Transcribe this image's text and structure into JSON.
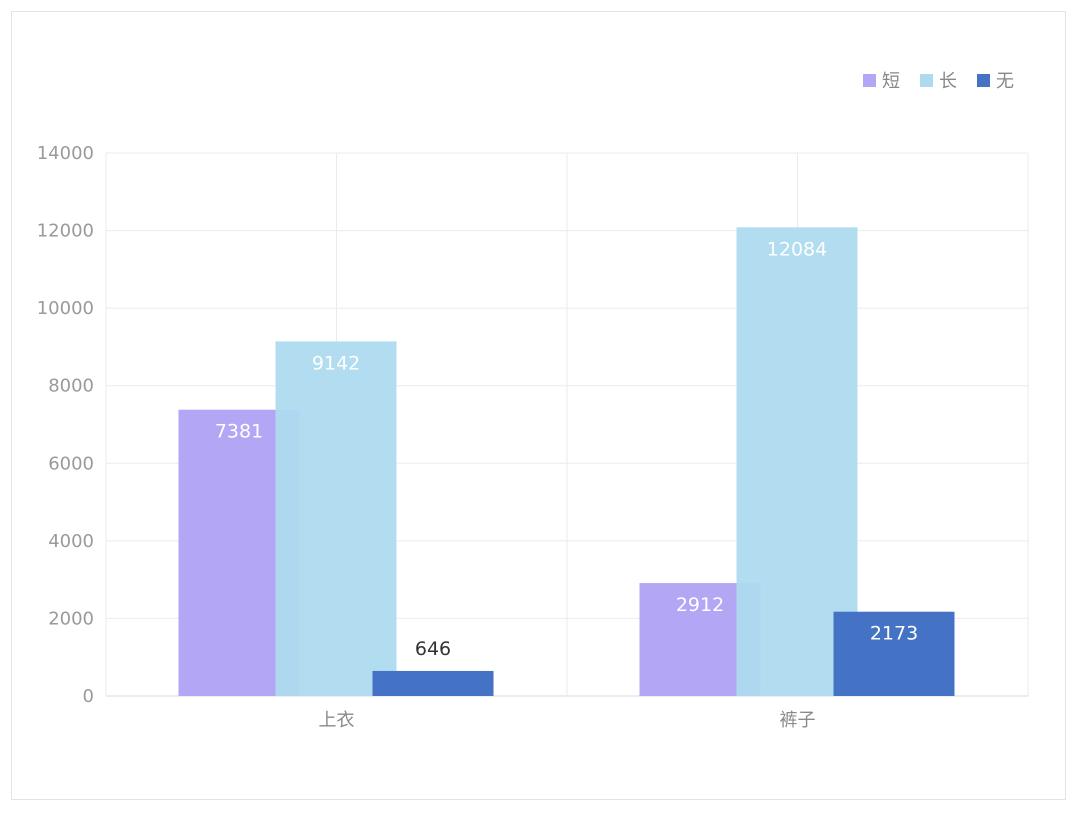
{
  "chart_data": {
    "type": "bar",
    "categories": [
      "上衣",
      "裤子"
    ],
    "series": [
      {
        "name": "短",
        "values": [
          7381,
          2912
        ],
        "color": "#b3a7f5"
      },
      {
        "name": "长",
        "values": [
          9142,
          12084
        ],
        "color": "#aedaef"
      },
      {
        "name": "无",
        "values": [
          646,
          2173
        ],
        "color": "#4472c4"
      }
    ],
    "yticks": [
      0,
      2000,
      4000,
      6000,
      8000,
      10000,
      12000,
      14000
    ],
    "ylim": [
      0,
      14000
    ],
    "grid": true,
    "legend_position": "top-right",
    "data_labels": true,
    "title": "",
    "xlabel": "",
    "ylabel": ""
  }
}
